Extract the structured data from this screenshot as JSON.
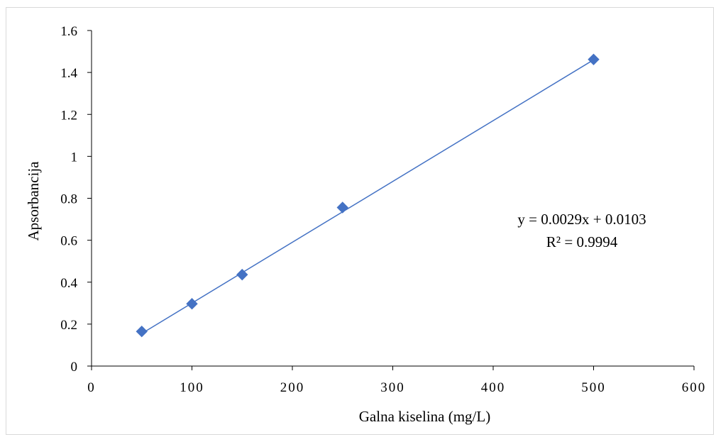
{
  "chart_data": {
    "type": "scatter",
    "title": "",
    "xlabel": "Galna kiselina (mg/L)",
    "ylabel": "Apsorbancija",
    "xlim": [
      0,
      600
    ],
    "ylim": [
      0,
      1.6
    ],
    "x_ticks": [
      "0",
      "100",
      "200",
      "300",
      "400",
      "500",
      "600"
    ],
    "y_ticks": [
      "0",
      "0.2",
      "0.4",
      "0.6",
      "0.8",
      "1",
      "1.2",
      "1.4",
      "1.6"
    ],
    "grid": false,
    "legend": "none",
    "series": [
      {
        "x": [
          50,
          100,
          150,
          250,
          500
        ],
        "y": [
          0.165,
          0.297,
          0.436,
          0.756,
          1.462
        ],
        "marker": "diamond",
        "color": "#4472C4"
      }
    ],
    "trendline": {
      "type": "linear",
      "slope": 0.0029,
      "intercept": 0.0103,
      "color": "#4472C4"
    },
    "annotations": {
      "equation": "y = 0.0029x + 0.0103",
      "r_squared": "R² = 0.9994"
    }
  }
}
